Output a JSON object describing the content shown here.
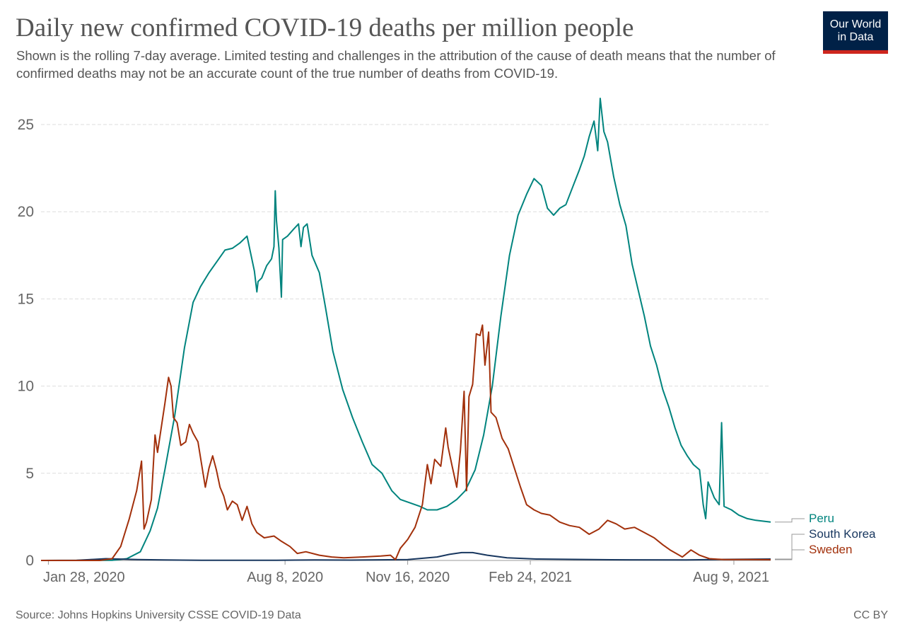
{
  "header": {
    "title": "Daily new confirmed COVID-19 deaths per million people",
    "subtitle": "Shown is the rolling 7-day average. Limited testing and challenges in the attribution of the cause of death means that the number of confirmed deaths may not be an accurate count of the true number of deaths from COVID-19."
  },
  "logo": {
    "line1": "Our World",
    "line2": "in Data"
  },
  "footer": {
    "source": "Source: Johns Hopkins University CSSE COVID-19 Data",
    "license": "CC BY"
  },
  "colors": {
    "grid": "#dddddd",
    "axis": "#999999",
    "peru": "#00847e",
    "south_korea": "#18375f",
    "sweden": "#a2300b"
  },
  "chart_data": {
    "type": "line",
    "title": "Daily new confirmed COVID-19 deaths per million people",
    "xlabel": "",
    "ylabel": "",
    "x_range": [
      "2020-01-22",
      "2021-09-08"
    ],
    "ylim": [
      0,
      25
    ],
    "y_ticks": [
      0,
      5,
      10,
      15,
      20,
      25
    ],
    "x_ticks": [
      {
        "date": "2020-01-28",
        "label": "Jan 28, 2020"
      },
      {
        "date": "2020-08-08",
        "label": "Aug 8, 2020"
      },
      {
        "date": "2020-11-16",
        "label": "Nov 16, 2020"
      },
      {
        "date": "2021-02-24",
        "label": "Feb 24, 2021"
      },
      {
        "date": "2021-08-09",
        "label": "Aug 9, 2021"
      }
    ],
    "grid": "horizontal dashed",
    "legend": "right end labels",
    "series": [
      {
        "name": "Peru",
        "color": "#00847e",
        "points": [
          [
            "2020-01-22",
            0
          ],
          [
            "2020-03-20",
            0.01
          ],
          [
            "2020-04-01",
            0.1
          ],
          [
            "2020-04-12",
            0.5
          ],
          [
            "2020-04-20",
            1.7
          ],
          [
            "2020-04-26",
            3
          ],
          [
            "2020-05-02",
            5.2
          ],
          [
            "2020-05-10",
            8.3
          ],
          [
            "2020-05-18",
            12.2
          ],
          [
            "2020-05-25",
            14.8
          ],
          [
            "2020-05-31",
            15.7
          ],
          [
            "2020-06-07",
            16.5
          ],
          [
            "2020-06-14",
            17.2
          ],
          [
            "2020-06-20",
            17.8
          ],
          [
            "2020-06-26",
            17.9
          ],
          [
            "2020-07-02",
            18.2
          ],
          [
            "2020-07-08",
            18.6
          ],
          [
            "2020-07-11",
            17.6
          ],
          [
            "2020-07-14",
            16.6
          ],
          [
            "2020-07-16",
            15.4
          ],
          [
            "2020-07-17",
            16.0
          ],
          [
            "2020-07-20",
            16.2
          ],
          [
            "2020-07-24",
            16.9
          ],
          [
            "2020-07-28",
            17.3
          ],
          [
            "2020-07-30",
            18.0
          ],
          [
            "2020-07-31",
            21.2
          ],
          [
            "2020-08-01",
            19.5
          ],
          [
            "2020-08-03",
            17.9
          ],
          [
            "2020-08-05",
            15.1
          ],
          [
            "2020-08-06",
            18.4
          ],
          [
            "2020-08-10",
            18.6
          ],
          [
            "2020-08-15",
            19.0
          ],
          [
            "2020-08-19",
            19.3
          ],
          [
            "2020-08-21",
            18.0
          ],
          [
            "2020-08-23",
            19.1
          ],
          [
            "2020-08-26",
            19.3
          ],
          [
            "2020-08-30",
            17.5
          ],
          [
            "2020-09-05",
            16.5
          ],
          [
            "2020-09-10",
            14.5
          ],
          [
            "2020-09-16",
            12.0
          ],
          [
            "2020-09-24",
            9.8
          ],
          [
            "2020-10-02",
            8.2
          ],
          [
            "2020-10-10",
            6.8
          ],
          [
            "2020-10-18",
            5.5
          ],
          [
            "2020-10-26",
            5.0
          ],
          [
            "2020-11-03",
            4.0
          ],
          [
            "2020-11-10",
            3.5
          ],
          [
            "2020-11-18",
            3.3
          ],
          [
            "2020-11-26",
            3.1
          ],
          [
            "2020-12-02",
            2.9
          ],
          [
            "2020-12-10",
            2.9
          ],
          [
            "2020-12-18",
            3.1
          ],
          [
            "2020-12-26",
            3.5
          ],
          [
            "2021-01-02",
            4.0
          ],
          [
            "2021-01-10",
            5.2
          ],
          [
            "2021-01-17",
            7.2
          ],
          [
            "2021-01-24",
            10.0
          ],
          [
            "2021-01-31",
            14.0
          ],
          [
            "2021-02-07",
            17.5
          ],
          [
            "2021-02-14",
            19.8
          ],
          [
            "2021-02-21",
            21.0
          ],
          [
            "2021-02-27",
            21.9
          ],
          [
            "2021-03-05",
            21.5
          ],
          [
            "2021-03-10",
            20.2
          ],
          [
            "2021-03-15",
            19.8
          ],
          [
            "2021-03-20",
            20.2
          ],
          [
            "2021-03-25",
            20.4
          ],
          [
            "2021-03-31",
            21.5
          ],
          [
            "2021-04-05",
            22.4
          ],
          [
            "2021-04-09",
            23.2
          ],
          [
            "2021-04-13",
            24.3
          ],
          [
            "2021-04-17",
            25.2
          ],
          [
            "2021-04-20",
            23.5
          ],
          [
            "2021-04-22",
            26.5
          ],
          [
            "2021-04-25",
            24.6
          ],
          [
            "2021-04-28",
            24.0
          ],
          [
            "2021-05-03",
            22.0
          ],
          [
            "2021-05-08",
            20.4
          ],
          [
            "2021-05-13",
            19.2
          ],
          [
            "2021-05-18",
            17.0
          ],
          [
            "2021-05-23",
            15.5
          ],
          [
            "2021-05-28",
            14.0
          ],
          [
            "2021-06-02",
            12.3
          ],
          [
            "2021-06-07",
            11.2
          ],
          [
            "2021-06-12",
            9.8
          ],
          [
            "2021-06-17",
            8.8
          ],
          [
            "2021-06-22",
            7.6
          ],
          [
            "2021-06-27",
            6.6
          ],
          [
            "2021-07-02",
            6.0
          ],
          [
            "2021-07-07",
            5.5
          ],
          [
            "2021-07-12",
            5.2
          ],
          [
            "2021-07-15",
            3.2
          ],
          [
            "2021-07-17",
            2.4
          ],
          [
            "2021-07-19",
            4.5
          ],
          [
            "2021-07-24",
            3.6
          ],
          [
            "2021-07-28",
            3.2
          ],
          [
            "2021-07-30",
            7.9
          ],
          [
            "2021-08-01",
            3.1
          ],
          [
            "2021-08-07",
            2.9
          ],
          [
            "2021-08-13",
            2.6
          ],
          [
            "2021-08-20",
            2.4
          ],
          [
            "2021-08-27",
            2.3
          ],
          [
            "2021-09-08",
            2.2
          ]
        ]
      },
      {
        "name": "South Korea",
        "color": "#18375f",
        "points": [
          [
            "2020-01-22",
            0
          ],
          [
            "2020-02-20",
            0.01
          ],
          [
            "2020-03-05",
            0.06
          ],
          [
            "2020-03-15",
            0.1
          ],
          [
            "2020-03-25",
            0.08
          ],
          [
            "2020-04-10",
            0.05
          ],
          [
            "2020-05-01",
            0.03
          ],
          [
            "2020-06-01",
            0.01
          ],
          [
            "2020-08-01",
            0.01
          ],
          [
            "2020-09-01",
            0.03
          ],
          [
            "2020-10-01",
            0.02
          ],
          [
            "2020-11-16",
            0.05
          ],
          [
            "2020-12-10",
            0.2
          ],
          [
            "2020-12-20",
            0.35
          ],
          [
            "2020-12-30",
            0.45
          ],
          [
            "2021-01-08",
            0.45
          ],
          [
            "2021-01-20",
            0.3
          ],
          [
            "2021-02-05",
            0.15
          ],
          [
            "2021-03-01",
            0.08
          ],
          [
            "2021-05-01",
            0.04
          ],
          [
            "2021-07-01",
            0.03
          ],
          [
            "2021-08-01",
            0.06
          ],
          [
            "2021-09-08",
            0.08
          ]
        ]
      },
      {
        "name": "Sweden",
        "color": "#a2300b",
        "points": [
          [
            "2020-01-22",
            0
          ],
          [
            "2020-03-10",
            0
          ],
          [
            "2020-03-20",
            0.1
          ],
          [
            "2020-03-27",
            0.8
          ],
          [
            "2020-04-03",
            2.4
          ],
          [
            "2020-04-09",
            4.0
          ],
          [
            "2020-04-13",
            5.7
          ],
          [
            "2020-04-15",
            1.8
          ],
          [
            "2020-04-17",
            2.2
          ],
          [
            "2020-04-21",
            3.5
          ],
          [
            "2020-04-24",
            7.2
          ],
          [
            "2020-04-26",
            6.2
          ],
          [
            "2020-04-29",
            7.6
          ],
          [
            "2020-05-02",
            9.0
          ],
          [
            "2020-05-05",
            10.5
          ],
          [
            "2020-05-07",
            10.0
          ],
          [
            "2020-05-09",
            8.2
          ],
          [
            "2020-05-12",
            7.9
          ],
          [
            "2020-05-15",
            6.6
          ],
          [
            "2020-05-19",
            6.8
          ],
          [
            "2020-05-22",
            7.8
          ],
          [
            "2020-05-25",
            7.3
          ],
          [
            "2020-05-29",
            6.8
          ],
          [
            "2020-06-01",
            5.5
          ],
          [
            "2020-06-04",
            4.2
          ],
          [
            "2020-06-07",
            5.3
          ],
          [
            "2020-06-10",
            6.0
          ],
          [
            "2020-06-13",
            5.2
          ],
          [
            "2020-06-16",
            4.2
          ],
          [
            "2020-06-19",
            3.7
          ],
          [
            "2020-06-22",
            2.9
          ],
          [
            "2020-06-26",
            3.4
          ],
          [
            "2020-06-30",
            3.2
          ],
          [
            "2020-07-04",
            2.3
          ],
          [
            "2020-07-08",
            3.1
          ],
          [
            "2020-07-12",
            2.1
          ],
          [
            "2020-07-16",
            1.6
          ],
          [
            "2020-07-22",
            1.3
          ],
          [
            "2020-07-30",
            1.4
          ],
          [
            "2020-08-05",
            1.1
          ],
          [
            "2020-08-12",
            0.8
          ],
          [
            "2020-08-18",
            0.4
          ],
          [
            "2020-08-25",
            0.5
          ],
          [
            "2020-09-05",
            0.3
          ],
          [
            "2020-09-15",
            0.2
          ],
          [
            "2020-09-25",
            0.15
          ],
          [
            "2020-10-10",
            0.2
          ],
          [
            "2020-10-25",
            0.25
          ],
          [
            "2020-11-02",
            0.3
          ],
          [
            "2020-11-06",
            0.05
          ],
          [
            "2020-11-10",
            0.7
          ],
          [
            "2020-11-16",
            1.2
          ],
          [
            "2020-11-22",
            1.9
          ],
          [
            "2020-11-28",
            3.2
          ],
          [
            "2020-12-02",
            5.5
          ],
          [
            "2020-12-05",
            4.4
          ],
          [
            "2020-12-08",
            5.8
          ],
          [
            "2020-12-13",
            5.4
          ],
          [
            "2020-12-17",
            7.6
          ],
          [
            "2020-12-19",
            6.5
          ],
          [
            "2020-12-22",
            5.5
          ],
          [
            "2020-12-26",
            4.2
          ],
          [
            "2020-12-29",
            6.3
          ],
          [
            "2021-01-01",
            9.7
          ],
          [
            "2021-01-03",
            4.0
          ],
          [
            "2021-01-05",
            9.4
          ],
          [
            "2021-01-08",
            10.1
          ],
          [
            "2021-01-11",
            13.0
          ],
          [
            "2021-01-14",
            12.9
          ],
          [
            "2021-01-16",
            13.5
          ],
          [
            "2021-01-18",
            11.2
          ],
          [
            "2021-01-21",
            13.1
          ],
          [
            "2021-01-23",
            8.5
          ],
          [
            "2021-01-27",
            8.2
          ],
          [
            "2021-02-01",
            7.0
          ],
          [
            "2021-02-06",
            6.4
          ],
          [
            "2021-02-11",
            5.3
          ],
          [
            "2021-02-16",
            4.2
          ],
          [
            "2021-02-21",
            3.2
          ],
          [
            "2021-02-27",
            2.9
          ],
          [
            "2021-03-05",
            2.7
          ],
          [
            "2021-03-12",
            2.6
          ],
          [
            "2021-03-20",
            2.2
          ],
          [
            "2021-03-28",
            2.0
          ],
          [
            "2021-04-05",
            1.9
          ],
          [
            "2021-04-13",
            1.5
          ],
          [
            "2021-04-21",
            1.8
          ],
          [
            "2021-04-28",
            2.3
          ],
          [
            "2021-05-05",
            2.1
          ],
          [
            "2021-05-12",
            1.8
          ],
          [
            "2021-05-20",
            1.9
          ],
          [
            "2021-05-28",
            1.6
          ],
          [
            "2021-06-05",
            1.3
          ],
          [
            "2021-06-12",
            0.9
          ],
          [
            "2021-06-18",
            0.6
          ],
          [
            "2021-06-23",
            0.4
          ],
          [
            "2021-06-28",
            0.2
          ],
          [
            "2021-07-05",
            0.6
          ],
          [
            "2021-07-12",
            0.3
          ],
          [
            "2021-07-20",
            0.1
          ],
          [
            "2021-08-01",
            0.05
          ],
          [
            "2021-08-20",
            0.05
          ],
          [
            "2021-09-08",
            0.04
          ]
        ]
      }
    ]
  }
}
